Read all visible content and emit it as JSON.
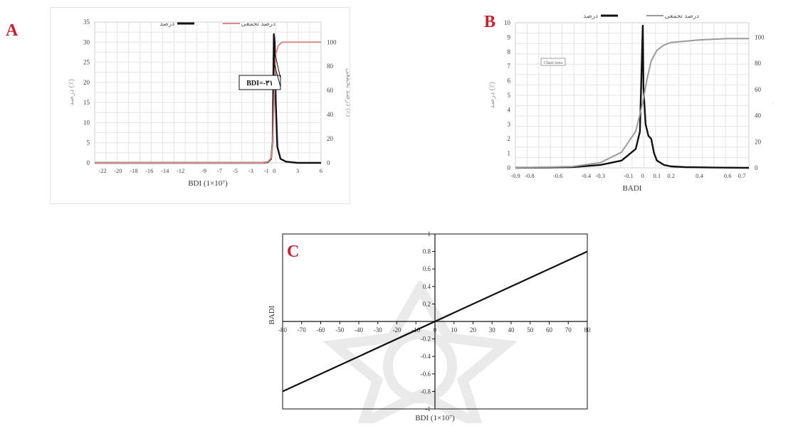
{
  "chart_data": [
    {
      "panel_label": "A",
      "type": "line",
      "legend": [
        "درصد",
        "درصد تجمعی"
      ],
      "legend_placement": "top",
      "xlabel": "BDI (1×10⁷)",
      "ylabel_left": "درصد (٪)",
      "ylabel_right": "درصد تجمعی (٪)",
      "xlim": [
        -23,
        6
      ],
      "ylim_left": [
        0,
        35
      ],
      "ylim_right": [
        0,
        116.67
      ],
      "x_ticks": [
        -22,
        -20,
        -18,
        -16,
        -14,
        -12,
        -9,
        -7,
        -5,
        -3,
        -1,
        0,
        3,
        6
      ],
      "x_tick_labels": [
        "-22",
        "-20",
        "-18",
        "-16",
        "-14",
        "-12",
        "-9",
        "-7",
        "-5",
        "-3",
        "-1",
        "0",
        "3",
        "6"
      ],
      "y_ticks_left": [
        0,
        5,
        10,
        15,
        20,
        25,
        30,
        35
      ],
      "y_ticks_right": [
        0,
        20,
        40,
        60,
        80,
        100
      ],
      "grid": true,
      "annotation": "BDI=-٣١",
      "series": [
        {
          "name": "درصد",
          "axis": "left",
          "color": "#111111",
          "x": [
            -23,
            -1.5,
            -0.8,
            -0.4,
            -0.2,
            -0.05,
            0.05,
            0.2,
            0.4,
            0.8,
            1.5,
            3,
            6
          ],
          "y": [
            0,
            0,
            0.2,
            1,
            5,
            32,
            30,
            15,
            4,
            1,
            0.3,
            0,
            0
          ]
        },
        {
          "name": "درصد تجمعی",
          "axis": "right",
          "color": "#d88a8a",
          "x": [
            -23,
            -1.5,
            -0.8,
            -0.4,
            -0.2,
            0,
            0.2,
            0.5,
            1,
            6
          ],
          "y": [
            0,
            0,
            1,
            4,
            15,
            55,
            90,
            97,
            100,
            100
          ]
        }
      ]
    },
    {
      "panel_label": "B",
      "type": "line",
      "legend": [
        "درصد",
        "درصد تجمعی"
      ],
      "legend_placement": "top",
      "box_label": "Chart Area",
      "xlabel": "BADI",
      "ylabel_left": "درصد (٪)",
      "ylabel_right": "درصد تجمعی (٪)",
      "xlim": [
        -0.9,
        0.75
      ],
      "ylim_left": [
        0,
        10
      ],
      "ylim_right": [
        0,
        111.1
      ],
      "x_ticks": [
        -0.9,
        -0.8,
        -0.6,
        -0.4,
        -0.3,
        -0.1,
        0,
        0.1,
        0.2,
        0.4,
        0.6,
        0.7
      ],
      "x_tick_labels": [
        "-0.9",
        "-0.8",
        "-0.6",
        "-0.4",
        "-0.3",
        "-0.1",
        "0",
        "0.1",
        "0.2",
        "0.4",
        "0.6",
        "0.7"
      ],
      "y_ticks_left": [
        0,
        1,
        2,
        3,
        4,
        5,
        6,
        7,
        8,
        9,
        10
      ],
      "y_ticks_right": [
        0,
        20,
        40,
        60,
        80,
        100
      ],
      "grid": true,
      "series": [
        {
          "name": "درصد",
          "axis": "left",
          "color": "#111111",
          "x": [
            -0.9,
            -0.5,
            -0.3,
            -0.15,
            -0.05,
            -0.02,
            0,
            0.005,
            0.02,
            0.04,
            0.06,
            0.08,
            0.1,
            0.15,
            0.2,
            0.3,
            0.5,
            0.75
          ],
          "y": [
            0,
            0.05,
            0.2,
            0.5,
            1.3,
            2.5,
            9.8,
            5.5,
            3,
            2.2,
            2,
            1,
            0.5,
            0.2,
            0.1,
            0.05,
            0.02,
            0
          ]
        },
        {
          "name": "درصد تجمعی",
          "axis": "right",
          "color": "#9a9a9a",
          "x": [
            -0.9,
            -0.5,
            -0.3,
            -0.15,
            -0.05,
            0,
            0.03,
            0.06,
            0.1,
            0.15,
            0.2,
            0.4,
            0.6,
            0.75
          ],
          "y": [
            0,
            1,
            4,
            12,
            28,
            50,
            68,
            82,
            90,
            94,
            96,
            98,
            99,
            99
          ]
        }
      ]
    },
    {
      "panel_label": "C",
      "type": "line",
      "xlabel": "BDI (1×10⁷)",
      "ylabel": "BADI",
      "xlim": [
        -80,
        80
      ],
      "ylim": [
        -1,
        1
      ],
      "x_ticks": [
        -80,
        -70,
        -60,
        -50,
        -40,
        -30,
        -20,
        -10,
        0,
        10,
        20,
        30,
        40,
        50,
        60,
        70,
        80
      ],
      "y_ticks": [
        -1,
        -0.8,
        -0.6,
        -0.4,
        -0.2,
        0,
        0.2,
        0.4,
        0.6,
        0.8,
        1
      ],
      "grid": false,
      "series": [
        {
          "name": "",
          "color": "#111111",
          "x": [
            -80,
            80
          ],
          "y": [
            -0.8,
            0.8
          ]
        }
      ]
    }
  ],
  "colors": {
    "panel_label": "#c8202f",
    "percent_line": "#111111"
  }
}
